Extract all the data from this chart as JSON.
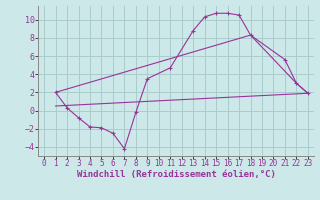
{
  "bg_color": "#cce8e8",
  "grid_color": "#aacccc",
  "line_color": "#993399",
  "xlabel": "Windchill (Refroidissement éolien,°C)",
  "xlabel_fontsize": 6.5,
  "xtick_fontsize": 5.5,
  "ytick_fontsize": 6,
  "xlim": [
    -0.5,
    23.5
  ],
  "ylim": [
    -5.0,
    11.5
  ],
  "xticks": [
    0,
    1,
    2,
    3,
    4,
    5,
    6,
    7,
    8,
    9,
    10,
    11,
    12,
    13,
    14,
    15,
    16,
    17,
    18,
    19,
    20,
    21,
    22,
    23
  ],
  "yticks": [
    -4,
    -2,
    0,
    2,
    4,
    6,
    8,
    10
  ],
  "curve1": [
    [
      1,
      2.0
    ],
    [
      2,
      0.3
    ],
    [
      3,
      -0.8
    ],
    [
      4,
      -1.8
    ],
    [
      5,
      -1.9
    ],
    [
      6,
      -2.5
    ],
    [
      7,
      -4.2
    ],
    [
      8,
      -0.2
    ],
    [
      9,
      3.5
    ],
    [
      11,
      4.7
    ],
    [
      13,
      8.8
    ],
    [
      14,
      10.3
    ],
    [
      15,
      10.7
    ],
    [
      16,
      10.7
    ],
    [
      17,
      10.5
    ],
    [
      18,
      8.3
    ],
    [
      21,
      5.6
    ],
    [
      22,
      3.0
    ],
    [
      23,
      1.9
    ]
  ],
  "line_diag1": [
    [
      1,
      2.0
    ],
    [
      18,
      8.3
    ],
    [
      22,
      3.0
    ],
    [
      23,
      1.9
    ]
  ],
  "line_flat": [
    [
      1,
      0.5
    ],
    [
      23,
      1.9
    ]
  ]
}
